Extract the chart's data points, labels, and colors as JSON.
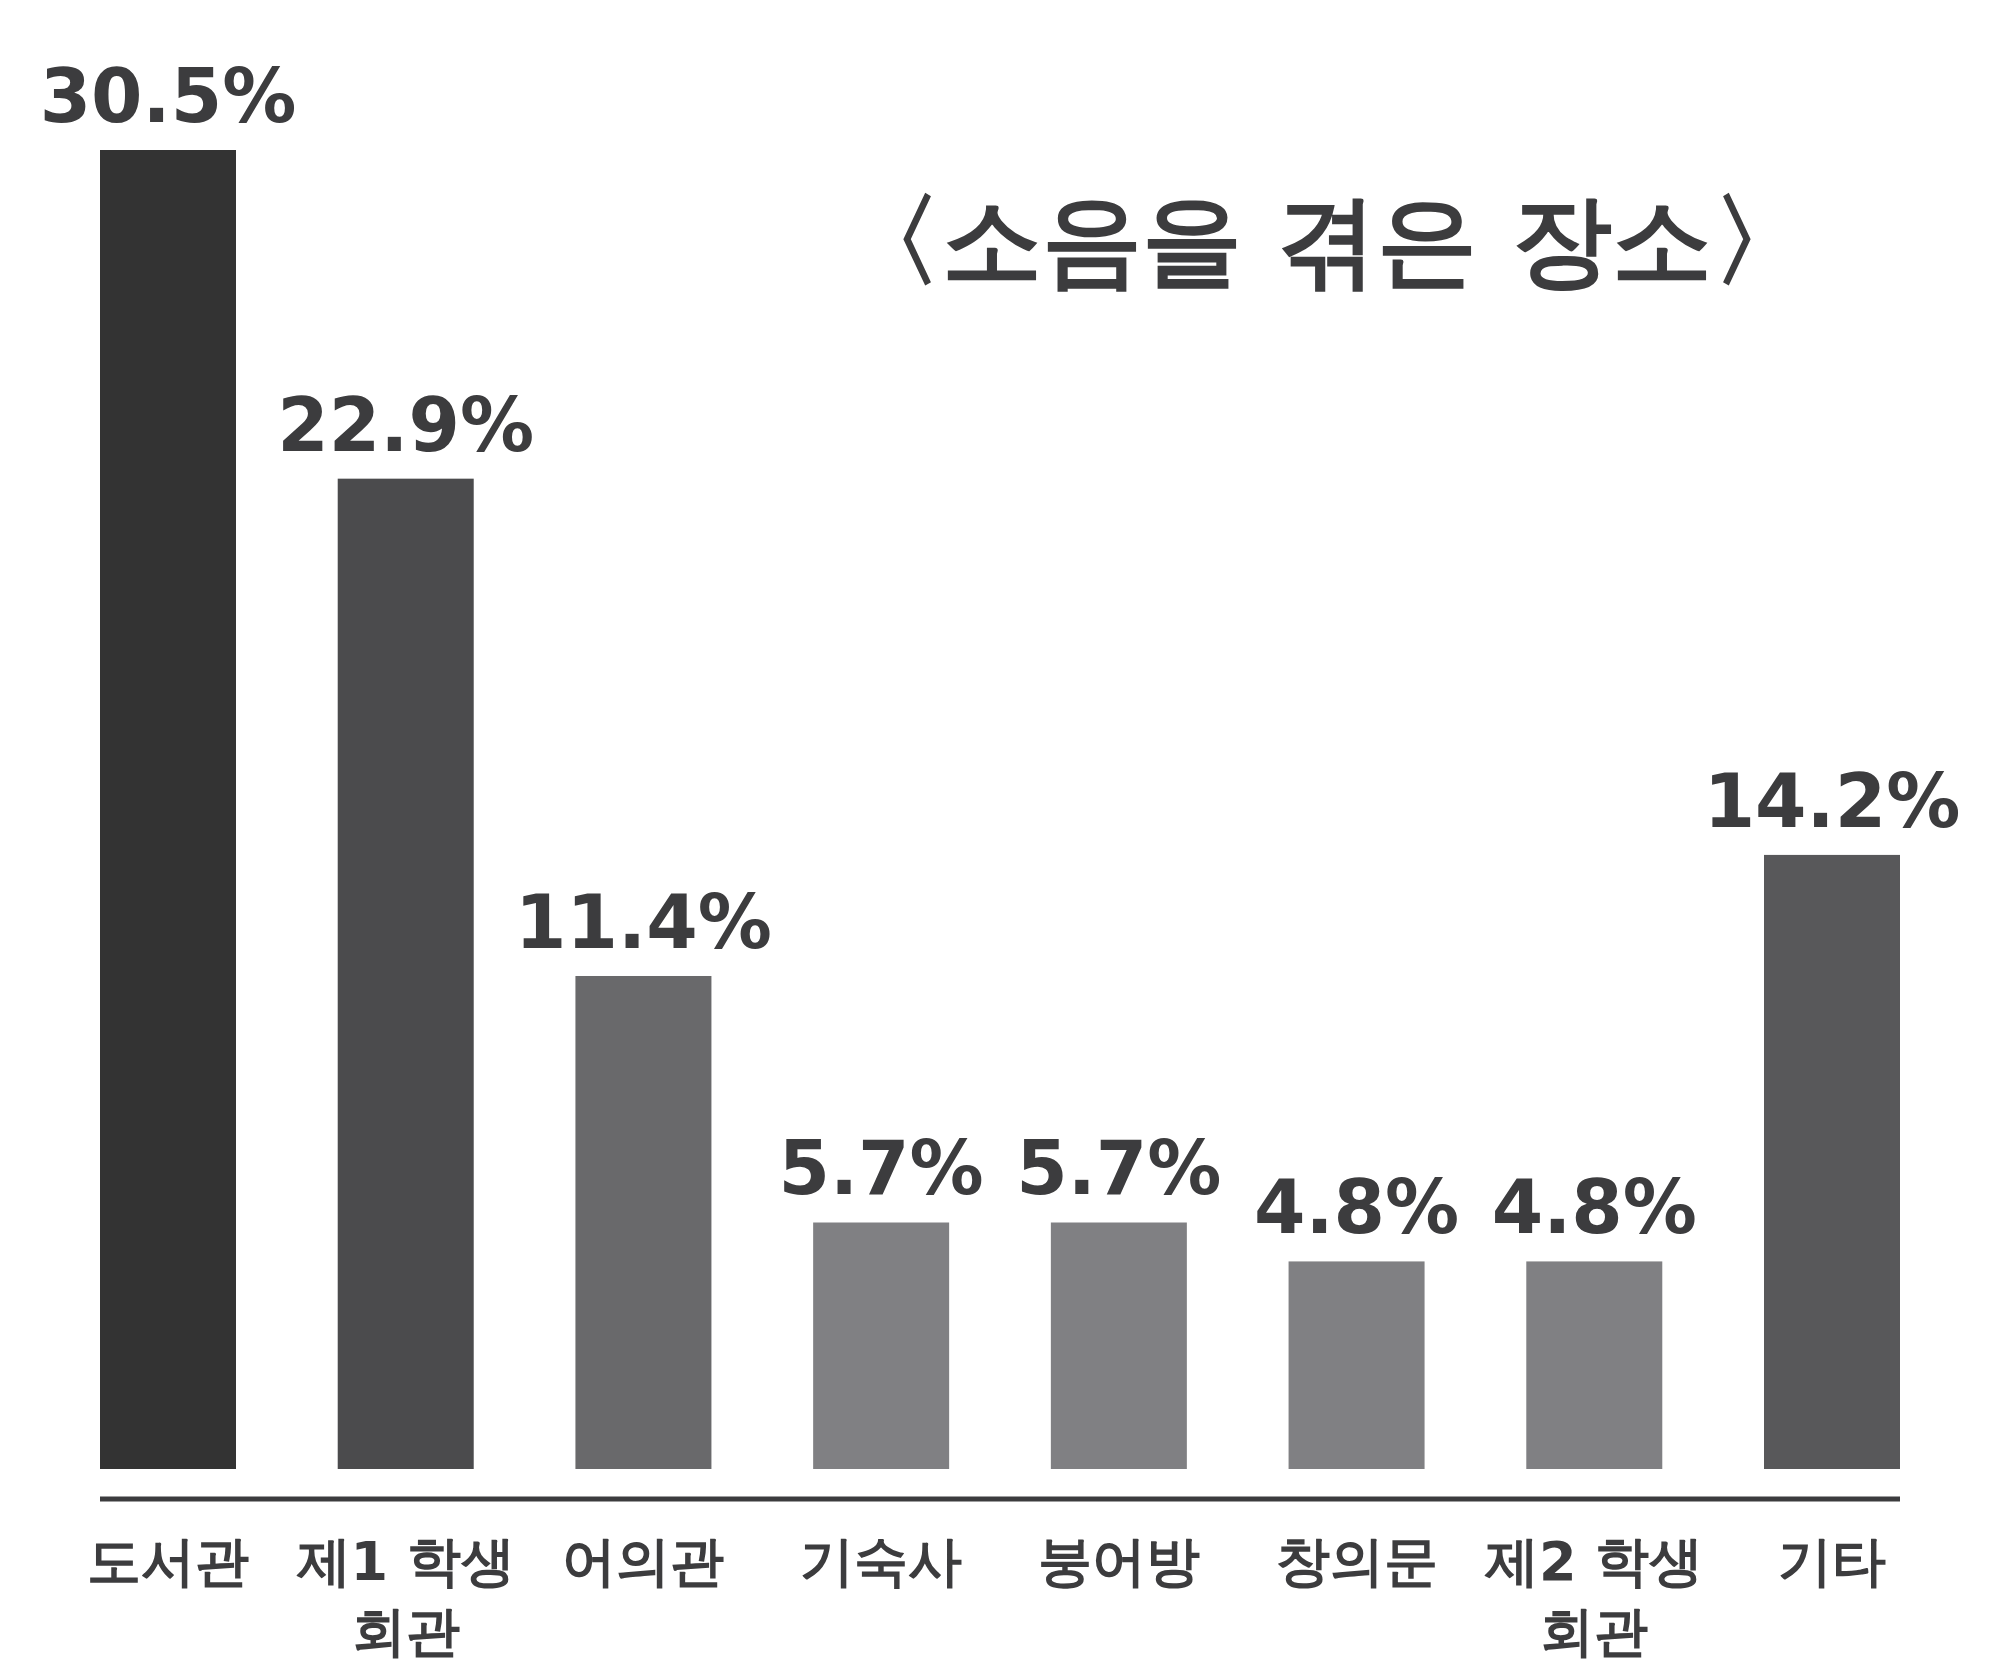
{
  "chart_data": {
    "type": "bar",
    "title": "〈소음을 겪은 장소〉",
    "categories": [
      "도서관",
      "제1 학생 회관",
      "어의관",
      "기숙사",
      "붕어방",
      "창의문",
      "제2 학생 회관",
      "기타"
    ],
    "values": [
      30.5,
      22.9,
      11.4,
      5.7,
      5.7,
      4.8,
      4.8,
      14.2
    ],
    "value_labels": [
      "30.5%",
      "22.9%",
      "11.4%",
      "5.7%",
      "5.7%",
      "4.8%",
      "4.8%",
      "14.2%"
    ],
    "colors": [
      "#333333",
      "#4b4b4d",
      "#69696b",
      "#808083",
      "#808083",
      "#808083",
      "#808083",
      "#58585a"
    ]
  }
}
